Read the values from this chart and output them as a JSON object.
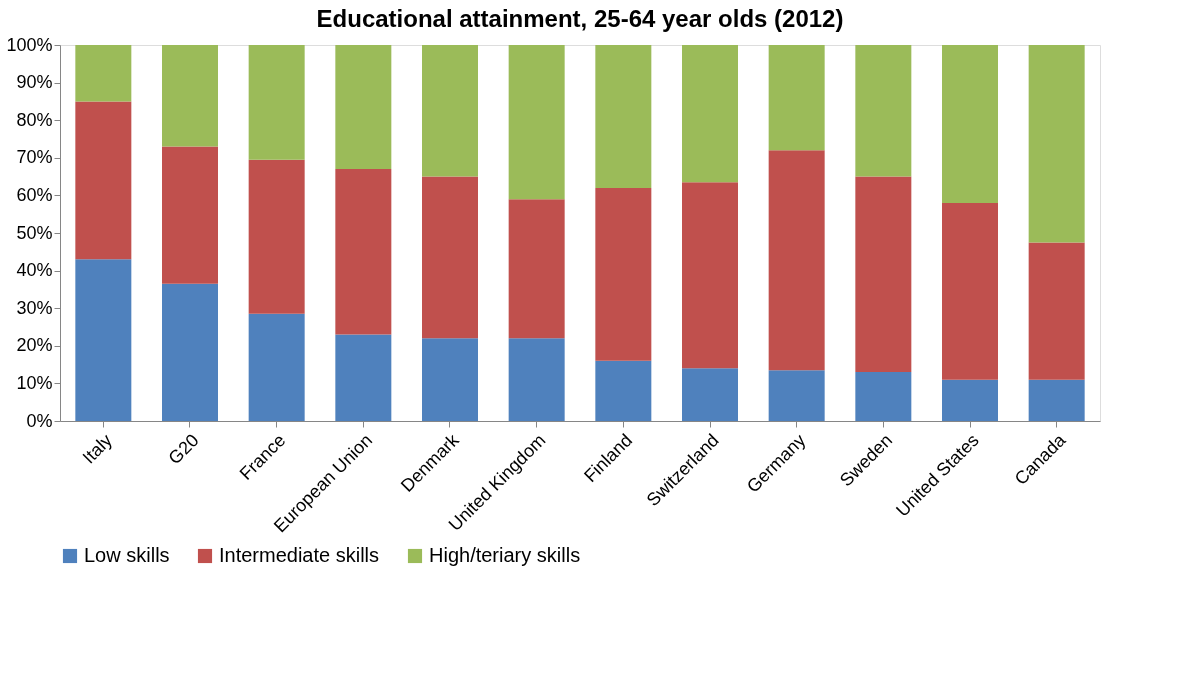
{
  "chart_data": {
    "type": "bar",
    "title": "Educational attainment, 25-64 year olds (2012)",
    "stacked": true,
    "categories": [
      "Italy",
      "G20",
      "France",
      "European Union",
      "Denmark",
      "United Kingdom",
      "Finland",
      "Switzerland",
      "Germany",
      "Sweden",
      "United States",
      "Canada"
    ],
    "series": [
      {
        "name": "Low skills",
        "color": "#4f81bd",
        "values": [
          43,
          36.5,
          28.5,
          23,
          22,
          22,
          16,
          14,
          13.5,
          13,
          11,
          11
        ]
      },
      {
        "name": "Intermediate skills",
        "color": "#c0504d",
        "values": [
          42,
          36.5,
          41,
          44,
          43,
          37,
          46,
          49.5,
          58.5,
          52,
          47,
          36.5
        ]
      },
      {
        "name": "High/teriary skills",
        "color": "#9bbb59",
        "values": [
          15,
          27,
          30.5,
          33,
          35,
          41,
          38,
          36.5,
          28,
          35,
          42,
          52.5
        ]
      }
    ],
    "ylim": [
      0,
      100
    ],
    "yticks": [
      {
        "value": 0,
        "label": "0%"
      },
      {
        "value": 10,
        "label": "10%"
      },
      {
        "value": 20,
        "label": "20%"
      },
      {
        "value": 30,
        "label": "30%"
      },
      {
        "value": 40,
        "label": "40%"
      },
      {
        "value": 50,
        "label": "50%"
      },
      {
        "value": 60,
        "label": "60%"
      },
      {
        "value": 70,
        "label": "70%"
      },
      {
        "value": 80,
        "label": "80%"
      },
      {
        "value": 90,
        "label": "90%"
      },
      {
        "value": 100,
        "label": "100%"
      }
    ],
    "grid": false,
    "legend": "bottom"
  }
}
